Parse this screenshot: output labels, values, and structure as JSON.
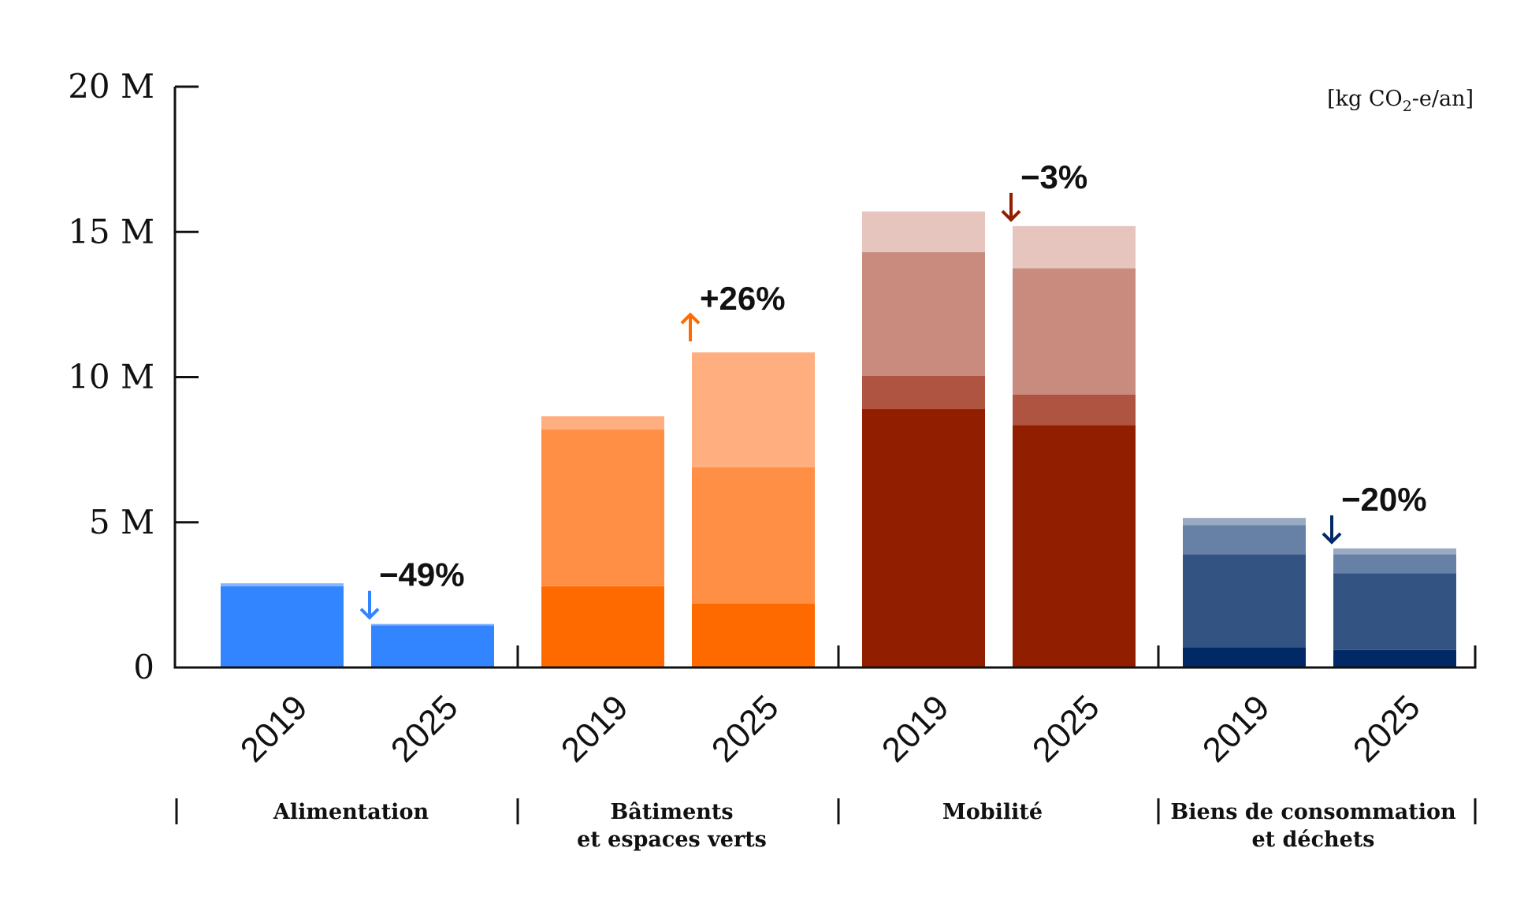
{
  "chart_data": {
    "type": "bar",
    "stacked": true,
    "unit": "[kg CO₂-e/an]",
    "unit_parts": [
      "[kg CO",
      "2",
      "-e/an]"
    ],
    "ylim": [
      0,
      20
    ],
    "yticks": [
      {
        "value": 0,
        "label": "0"
      },
      {
        "value": 5,
        "label": "5 M"
      },
      {
        "value": 10,
        "label": "10 M"
      },
      {
        "value": 15,
        "label": "15 M"
      },
      {
        "value": 20,
        "label": "20 M"
      }
    ],
    "grid": false,
    "groups": [
      {
        "label_lines": [
          "Alimentation"
        ],
        "change": "−49%",
        "direction": "down",
        "color": "#3385FF",
        "bars": [
          {
            "year": "2019",
            "segments": [
              {
                "value": 2.8,
                "color": "#3385FF"
              },
              {
                "value": 0.1,
                "color": "#85B5FF"
              }
            ]
          },
          {
            "year": "2025",
            "segments": [
              {
                "value": 1.45,
                "color": "#3385FF"
              },
              {
                "value": 0.05,
                "color": "#85B5FF"
              }
            ]
          }
        ]
      },
      {
        "label_lines": [
          "Bâtiments",
          "et espaces verts"
        ],
        "change": "+26%",
        "direction": "up",
        "color": "#FF6A00",
        "bars": [
          {
            "year": "2019",
            "segments": [
              {
                "value": 2.8,
                "color": "#FF6A00"
              },
              {
                "value": 5.4,
                "color": "#FF8F45"
              },
              {
                "value": 0.45,
                "color": "#FFAE7F"
              }
            ]
          },
          {
            "year": "2025",
            "segments": [
              {
                "value": 2.2,
                "color": "#FF6A00"
              },
              {
                "value": 4.7,
                "color": "#FF8F45"
              },
              {
                "value": 3.95,
                "color": "#FFAE7F"
              }
            ]
          }
        ]
      },
      {
        "label_lines": [
          "Mobilité"
        ],
        "change": "−3%",
        "direction": "down",
        "color": "#921E00",
        "bars": [
          {
            "year": "2019",
            "segments": [
              {
                "value": 8.9,
                "color": "#921E00"
              },
              {
                "value": 1.15,
                "color": "#AE5441"
              },
              {
                "value": 4.25,
                "color": "#C98B7D"
              },
              {
                "value": 1.4,
                "color": "#E5C5BD"
              }
            ]
          },
          {
            "year": "2025",
            "segments": [
              {
                "value": 8.35,
                "color": "#921E00"
              },
              {
                "value": 1.05,
                "color": "#AE5441"
              },
              {
                "value": 4.35,
                "color": "#C98B7D"
              },
              {
                "value": 1.45,
                "color": "#E5C5BD"
              }
            ]
          }
        ]
      },
      {
        "label_lines": [
          "Biens de consommation",
          "et déchets"
        ],
        "change": "−20%",
        "direction": "down",
        "color": "#002966",
        "bars": [
          {
            "year": "2019",
            "segments": [
              {
                "value": 0.7,
                "color": "#002966"
              },
              {
                "value": 3.2,
                "color": "#335482"
              },
              {
                "value": 1.0,
                "color": "#6680A6"
              },
              {
                "value": 0.25,
                "color": "#99AAC3"
              }
            ]
          },
          {
            "year": "2025",
            "segments": [
              {
                "value": 0.6,
                "color": "#002966"
              },
              {
                "value": 2.65,
                "color": "#335482"
              },
              {
                "value": 0.65,
                "color": "#6680A6"
              },
              {
                "value": 0.2,
                "color": "#99AAC3"
              }
            ]
          }
        ]
      }
    ]
  }
}
